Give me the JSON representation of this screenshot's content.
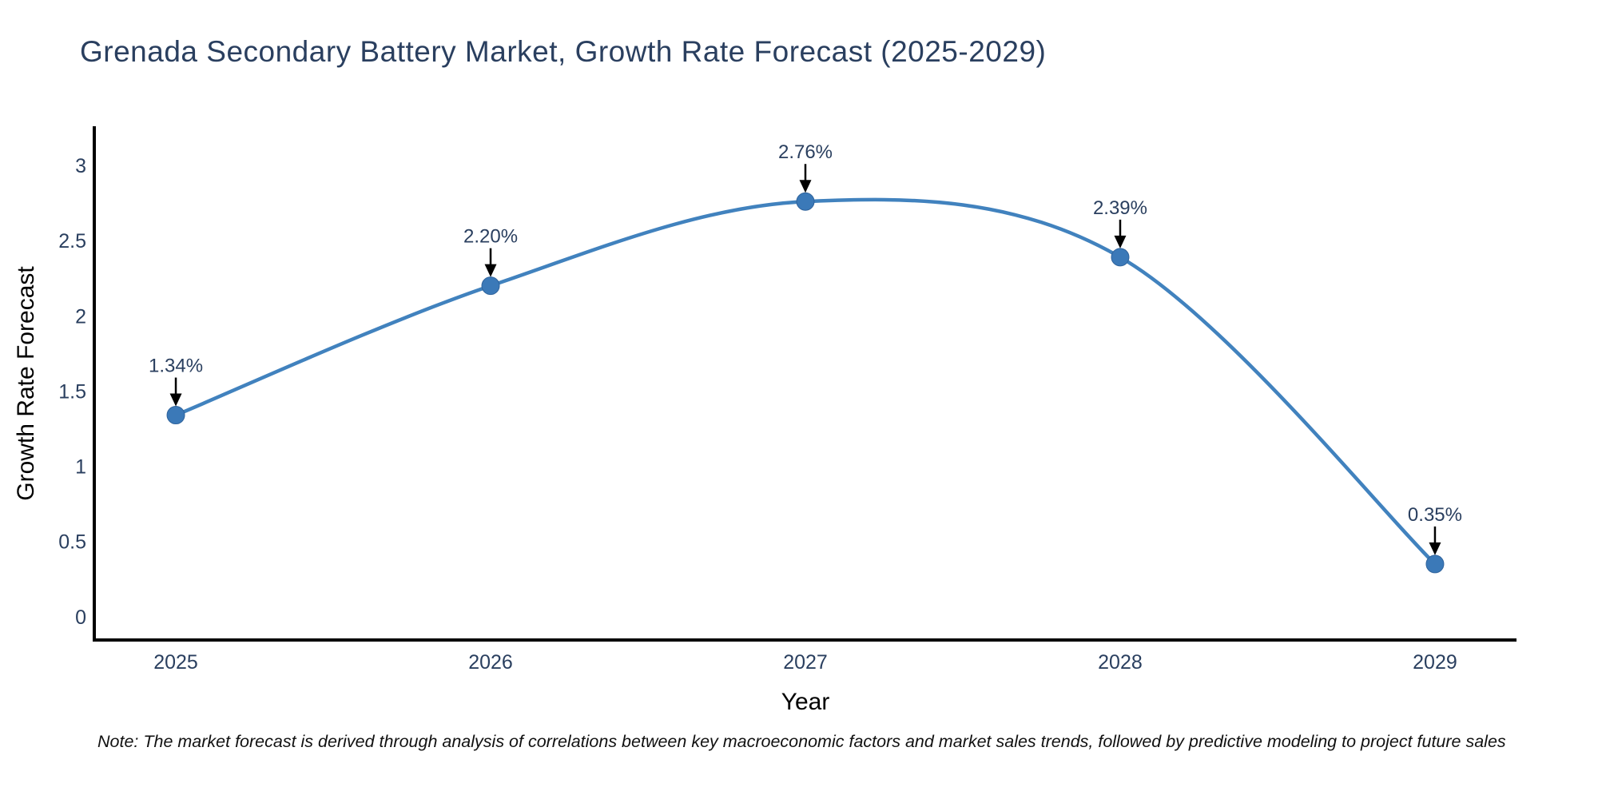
{
  "chart_data": {
    "type": "line",
    "title": "Grenada Secondary Battery Market, Growth Rate Forecast (2025-2029)",
    "xlabel": "Year",
    "ylabel": "Growth Rate Forecast",
    "x": [
      2025,
      2026,
      2027,
      2028,
      2029
    ],
    "y": [
      1.34,
      2.2,
      2.76,
      2.39,
      0.35
    ],
    "point_labels": [
      "1.34%",
      "2.20%",
      "2.76%",
      "2.39%",
      "0.35%"
    ],
    "x_tick_labels": [
      "2025",
      "2026",
      "2027",
      "2028",
      "2029"
    ],
    "y_ticks": [
      0,
      0.5,
      1,
      1.5,
      2,
      2.5,
      3
    ],
    "y_tick_labels": [
      "0",
      "0.5",
      "1",
      "1.5",
      "2",
      "2.5",
      "3"
    ],
    "xlim": [
      2024.741,
      2029.259
    ],
    "ylim": [
      -0.155,
      3.25
    ],
    "grid": false,
    "legend": false,
    "line_shape": "spline",
    "colors": {
      "line": "#4182be",
      "marker_fill": "#3b79b8",
      "marker_edge": "#2f639c",
      "axis": "#000000",
      "text": "#2a3f5f",
      "annotation_text": "#2a3f5f",
      "annotation_arrow": "#000000"
    }
  },
  "note": {
    "text": "Note: The market forecast is derived through analysis of correlations between key macroeconomic factors and market sales trends, followed by predictive modeling to project future sales"
  }
}
